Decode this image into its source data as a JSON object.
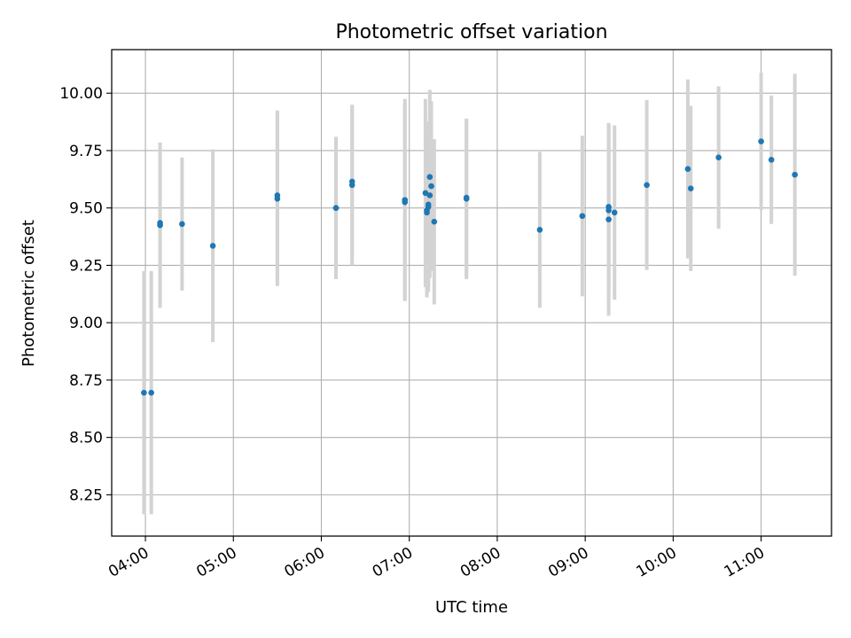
{
  "chart_data": {
    "type": "scatter",
    "title": "Photometric offset variation",
    "xlabel": "UTC time",
    "ylabel": "Photometric offset",
    "x_tick_labels": [
      "04:00",
      "05:00",
      "06:00",
      "07:00",
      "08:00",
      "09:00",
      "10:00",
      "11:00"
    ],
    "x_tick_hours": [
      4,
      5,
      6,
      7,
      8,
      9,
      10,
      11
    ],
    "y_tick_labels": [
      "8.25",
      "8.50",
      "8.75",
      "9.00",
      "9.25",
      "9.50",
      "9.75",
      "10.00"
    ],
    "y_tick_values": [
      8.25,
      8.5,
      8.75,
      9.0,
      9.25,
      9.5,
      9.75,
      10.0
    ],
    "xlim": [
      "03:37",
      "11:48"
    ],
    "ylim": [
      8.07,
      10.19
    ],
    "grid": true,
    "point_color": "#1f77b4",
    "errorbar_color": "#d3d3d3",
    "points": [
      {
        "x": "03:59",
        "y": 8.695,
        "err": 0.53
      },
      {
        "x": "04:04",
        "y": 8.695,
        "err": 0.53
      },
      {
        "x": "04:10",
        "y": 9.425,
        "err": 0.36
      },
      {
        "x": "04:10",
        "y": 9.435,
        "err": 0.35
      },
      {
        "x": "04:25",
        "y": 9.43,
        "err": 0.29
      },
      {
        "x": "04:46",
        "y": 9.335,
        "err": 0.42
      },
      {
        "x": "05:30",
        "y": 9.555,
        "err": 0.37
      },
      {
        "x": "05:30",
        "y": 9.54,
        "err": 0.38
      },
      {
        "x": "06:10",
        "y": 9.5,
        "err": 0.31
      },
      {
        "x": "06:10",
        "y": 9.5,
        "err": 0.3
      },
      {
        "x": "06:21",
        "y": 9.615,
        "err": 0.33
      },
      {
        "x": "06:21",
        "y": 9.6,
        "err": 0.35
      },
      {
        "x": "06:57",
        "y": 9.535,
        "err": 0.44
      },
      {
        "x": "06:57",
        "y": 9.525,
        "err": 0.43
      },
      {
        "x": "07:11",
        "y": 9.565,
        "err": 0.41
      },
      {
        "x": "07:12",
        "y": 9.49,
        "err": 0.37
      },
      {
        "x": "07:12",
        "y": 9.48,
        "err": 0.37
      },
      {
        "x": "07:13",
        "y": 9.505,
        "err": 0.37
      },
      {
        "x": "07:13",
        "y": 9.515,
        "err": 0.36
      },
      {
        "x": "07:14",
        "y": 9.635,
        "err": 0.38
      },
      {
        "x": "07:14",
        "y": 9.555,
        "err": 0.36
      },
      {
        "x": "07:15",
        "y": 9.595,
        "err": 0.37
      },
      {
        "x": "07:17",
        "y": 9.44,
        "err": 0.36
      },
      {
        "x": "07:39",
        "y": 9.545,
        "err": 0.34
      },
      {
        "x": "07:39",
        "y": 9.54,
        "err": 0.35
      },
      {
        "x": "08:29",
        "y": 9.405,
        "err": 0.34
      },
      {
        "x": "08:58",
        "y": 9.465,
        "err": 0.35
      },
      {
        "x": "09:16",
        "y": 9.45,
        "err": 0.42
      },
      {
        "x": "09:16",
        "y": 9.49,
        "err": 0.38
      },
      {
        "x": "09:16",
        "y": 9.505,
        "err": 0.36
      },
      {
        "x": "09:20",
        "y": 9.48,
        "err": 0.38
      },
      {
        "x": "09:42",
        "y": 9.6,
        "err": 0.37
      },
      {
        "x": "10:10",
        "y": 9.67,
        "err": 0.39
      },
      {
        "x": "10:12",
        "y": 9.585,
        "err": 0.36
      },
      {
        "x": "10:31",
        "y": 9.72,
        "err": 0.31
      },
      {
        "x": "11:00",
        "y": 9.79,
        "err": 0.3
      },
      {
        "x": "11:07",
        "y": 9.71,
        "err": 0.28
      },
      {
        "x": "11:23",
        "y": 9.645,
        "err": 0.44
      }
    ]
  }
}
